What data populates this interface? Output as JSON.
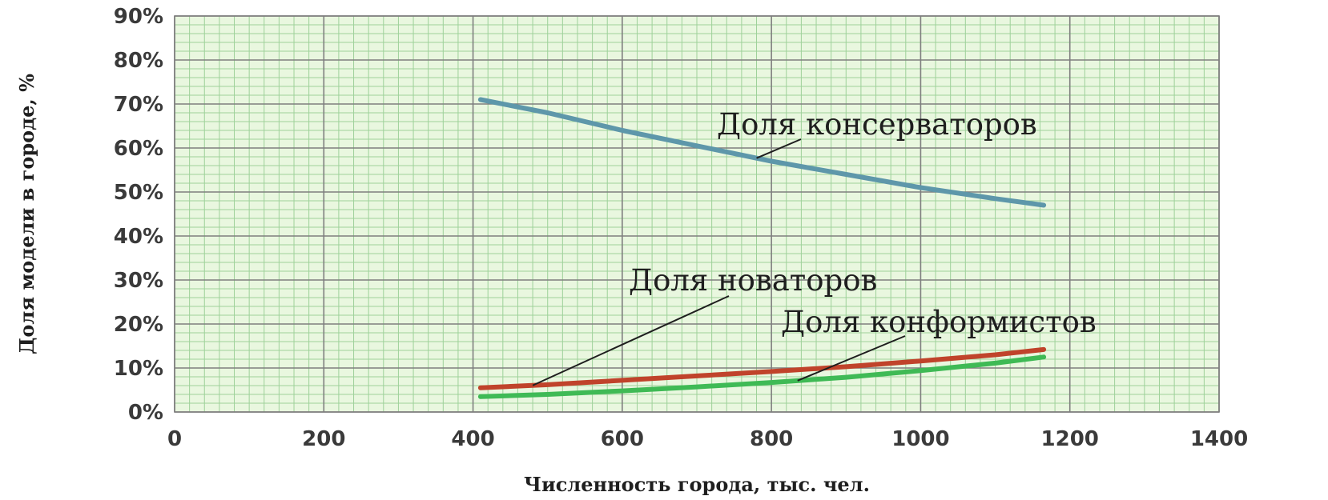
{
  "chart_data": {
    "type": "line",
    "xlabel": "Численность города, тыс. чел.",
    "ylabel": "Доля модели в городе, %",
    "xlim": [
      0,
      1400
    ],
    "ylim": [
      0,
      90
    ],
    "xticks": [
      "0",
      "200",
      "400",
      "600",
      "800",
      "1000",
      "1200",
      "1400"
    ],
    "yticks": [
      "0%",
      "10%",
      "20%",
      "30%",
      "40%",
      "50%",
      "60%",
      "70%",
      "80%",
      "90%"
    ],
    "grid": true,
    "legend": "none",
    "colors": {
      "plot_bg": "#e9f7df",
      "grid_minor": "#9ed19a",
      "grid_major": "#7f7f7f",
      "conservators": "#5e97aa",
      "innovators": "#c0432b",
      "conformists": "#3fba55"
    },
    "series": [
      {
        "name": "Доля консерваторов",
        "color": "#5e97aa",
        "points": [
          [
            410,
            71
          ],
          [
            500,
            68
          ],
          [
            600,
            64
          ],
          [
            700,
            60.5
          ],
          [
            800,
            57
          ],
          [
            900,
            54
          ],
          [
            1000,
            51
          ],
          [
            1100,
            48.5
          ],
          [
            1165,
            47
          ]
        ]
      },
      {
        "name": "Доля новаторов",
        "color": "#c0432b",
        "points": [
          [
            410,
            5.5
          ],
          [
            500,
            6.2
          ],
          [
            600,
            7.2
          ],
          [
            700,
            8.2
          ],
          [
            800,
            9.2
          ],
          [
            900,
            10.3
          ],
          [
            1000,
            11.6
          ],
          [
            1100,
            13
          ],
          [
            1165,
            14.2
          ]
        ]
      },
      {
        "name": "Доля конформистов",
        "color": "#3fba55",
        "points": [
          [
            410,
            3.5
          ],
          [
            500,
            4
          ],
          [
            600,
            4.8
          ],
          [
            700,
            5.7
          ],
          [
            800,
            6.7
          ],
          [
            900,
            7.9
          ],
          [
            1000,
            9.4
          ],
          [
            1100,
            11.1
          ],
          [
            1165,
            12.5
          ]
        ]
      }
    ],
    "annotations": [
      {
        "text": "Доля консерваторов",
        "series": 0
      },
      {
        "text": "Доля новаторов",
        "series": 1
      },
      {
        "text": "Доля конформистов",
        "series": 2
      }
    ]
  }
}
